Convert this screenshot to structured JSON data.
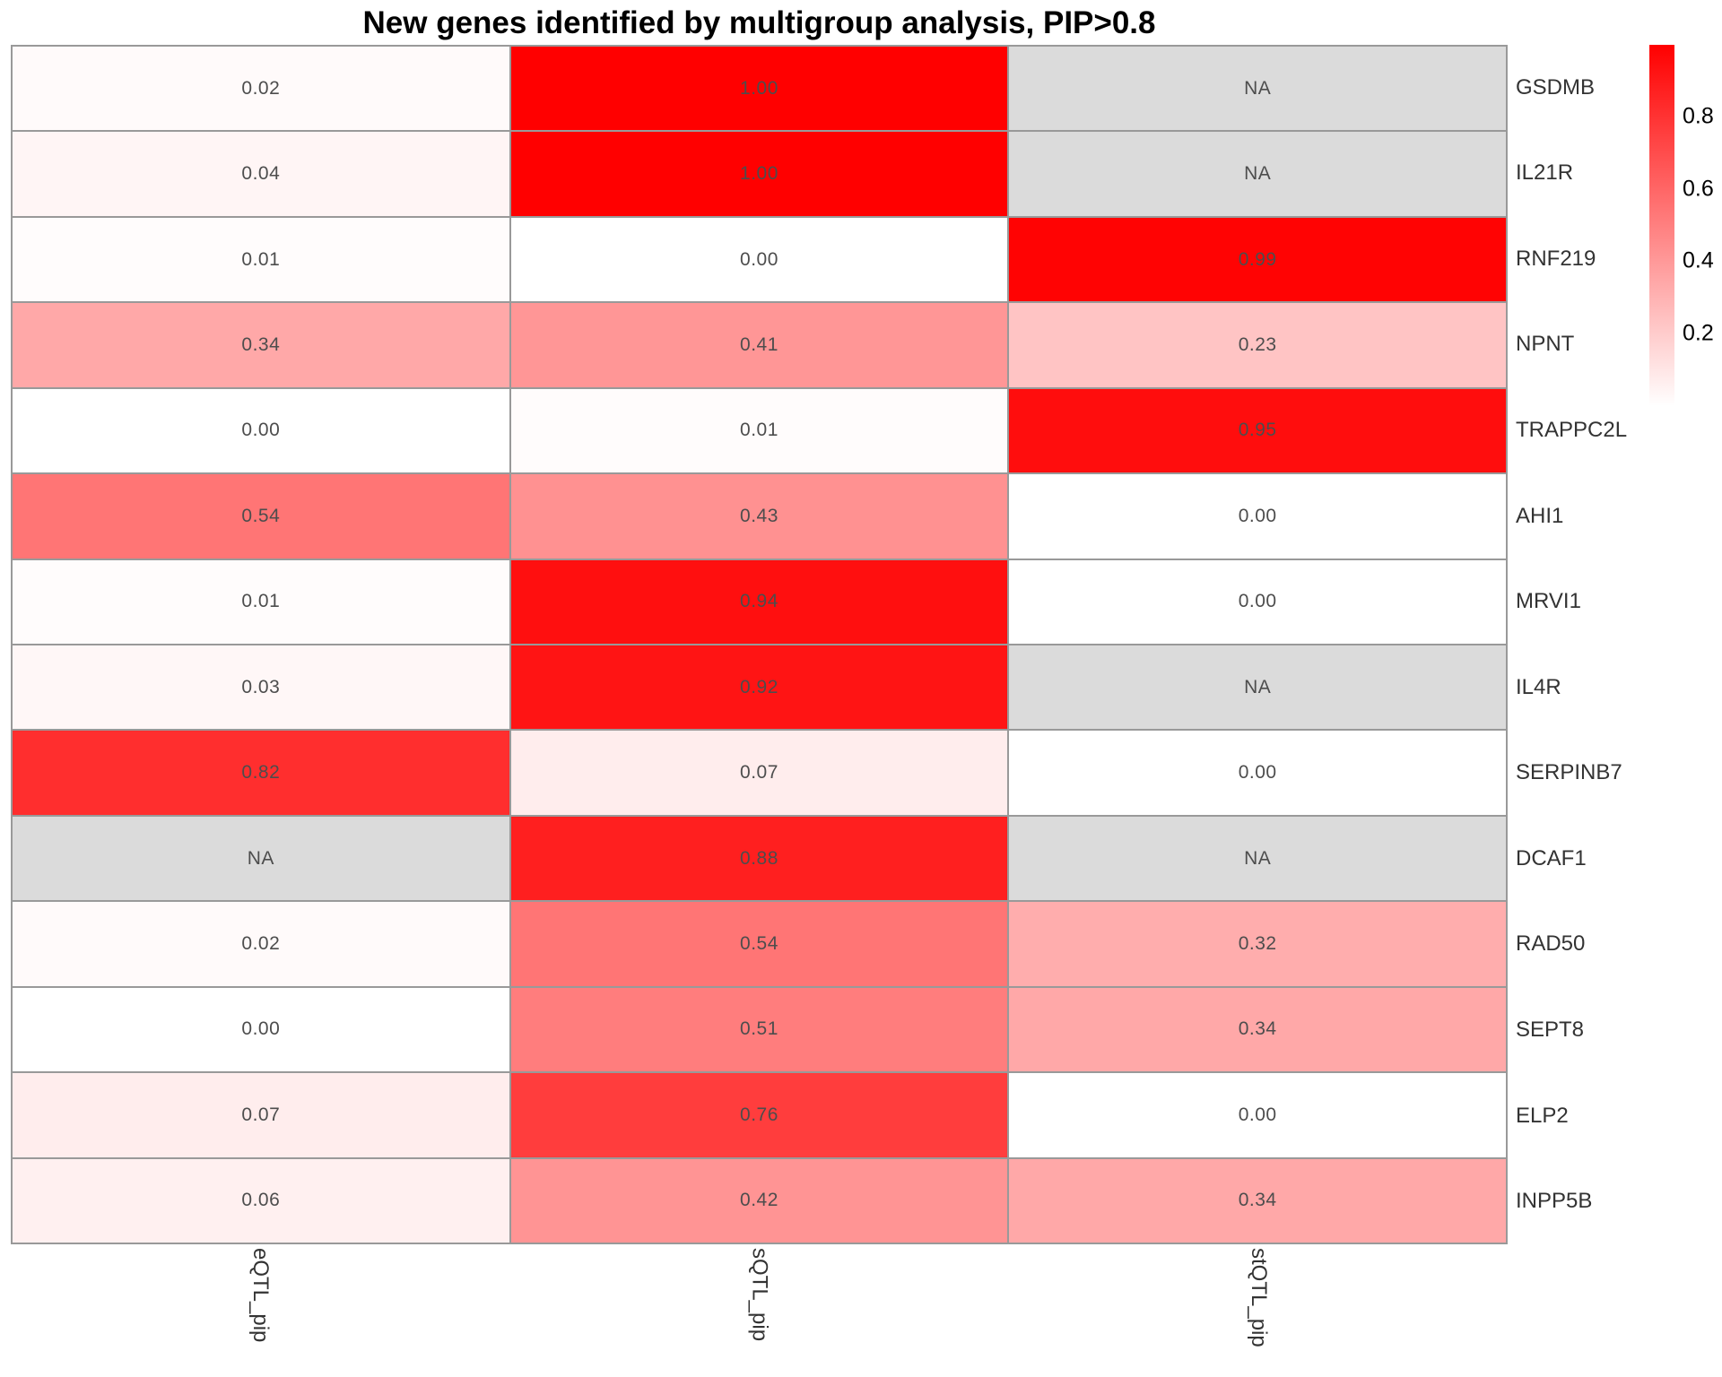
{
  "title": "New genes identified by multigroup analysis, PIP>0.8",
  "chart_data": {
    "type": "heatmap",
    "title": "New genes identified by multigroup analysis, PIP>0.8",
    "columns": [
      "eQTL_pip",
      "sQTL_pip",
      "stQTL_pip"
    ],
    "genes": [
      "GSDMB",
      "IL21R",
      "RNF219",
      "NPNT",
      "TRAPPC2L",
      "AHI1",
      "MRVI1",
      "IL4R",
      "SERPINB7",
      "DCAF1",
      "RAD50",
      "SEPT8",
      "ELP2",
      "INPP5B"
    ],
    "values": [
      [
        0.02,
        1.0,
        null
      ],
      [
        0.04,
        1.0,
        null
      ],
      [
        0.01,
        0.0,
        0.99
      ],
      [
        0.34,
        0.41,
        0.23
      ],
      [
        0.0,
        0.01,
        0.95
      ],
      [
        0.54,
        0.43,
        0.0
      ],
      [
        0.01,
        0.94,
        0.0
      ],
      [
        0.03,
        0.92,
        null
      ],
      [
        0.82,
        0.07,
        0.0
      ],
      [
        null,
        0.88,
        null
      ],
      [
        0.02,
        0.54,
        0.32
      ],
      [
        0.0,
        0.51,
        0.34
      ],
      [
        0.07,
        0.76,
        0.0
      ],
      [
        0.06,
        0.42,
        0.34
      ]
    ],
    "na_label": "NA",
    "value_decimals": 2,
    "colors": {
      "low": "#FFFFFF",
      "high": "#FF0000",
      "na": "#DBDBDB",
      "cell_text": "#4D4D4D",
      "grid": "#999999"
    },
    "legend": {
      "position": "right",
      "min": 0.0,
      "max": 1.0,
      "ticks": [
        0.8,
        0.6,
        0.4,
        0.2
      ]
    }
  }
}
